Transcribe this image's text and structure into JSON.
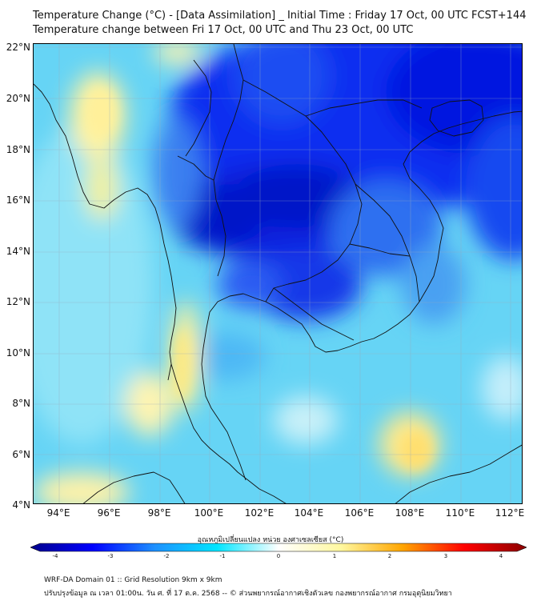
{
  "title_line1": "Temperature Change (°C) - [Data Assimilation] _ Initial Time : Friday 17 Oct, 00 UTC FCST+144",
  "title_line2": "Temperature change between Fri 17 Oct, 00 UTC and Thu 23 Oct, 00 UTC",
  "lat_labels": [
    "22°N",
    "20°N",
    "18°N",
    "16°N",
    "14°N",
    "12°N",
    "10°N",
    "8°N",
    "6°N",
    "4°N"
  ],
  "lon_labels": [
    "94°E",
    "96°E",
    "98°E",
    "100°E",
    "102°E",
    "104°E",
    "106°E",
    "108°E",
    "110°E",
    "112°E"
  ],
  "colorbar": {
    "title": "อุณหภูมิเปลี่ยนแปลง หน่วย องศาเซลเซียส (°C)",
    "ticks": [
      "-4",
      "-3",
      "-2",
      "-1",
      "0",
      "1",
      "2",
      "3",
      "4"
    ],
    "colors": [
      "#00008b",
      "#0000ff",
      "#1e90ff",
      "#00e5ff",
      "#ffffff",
      "#fff8a0",
      "#ffa500",
      "#ff0000",
      "#8b0000"
    ]
  },
  "footer_line1": "WRF-DA Domain 01 :: Grid Resolution 9km x 9km",
  "footer_line2": "ปรับปรุงข้อมูล ณ เวลา 01:00น. วัน ศ. ที่ 17 ต.ค. 2568 -- © ส่วนพยากรณ์อากาศเชิงตัวเลข กองพยากรณ์อากาศ กรมอุตุนิยมวิทยา"
}
